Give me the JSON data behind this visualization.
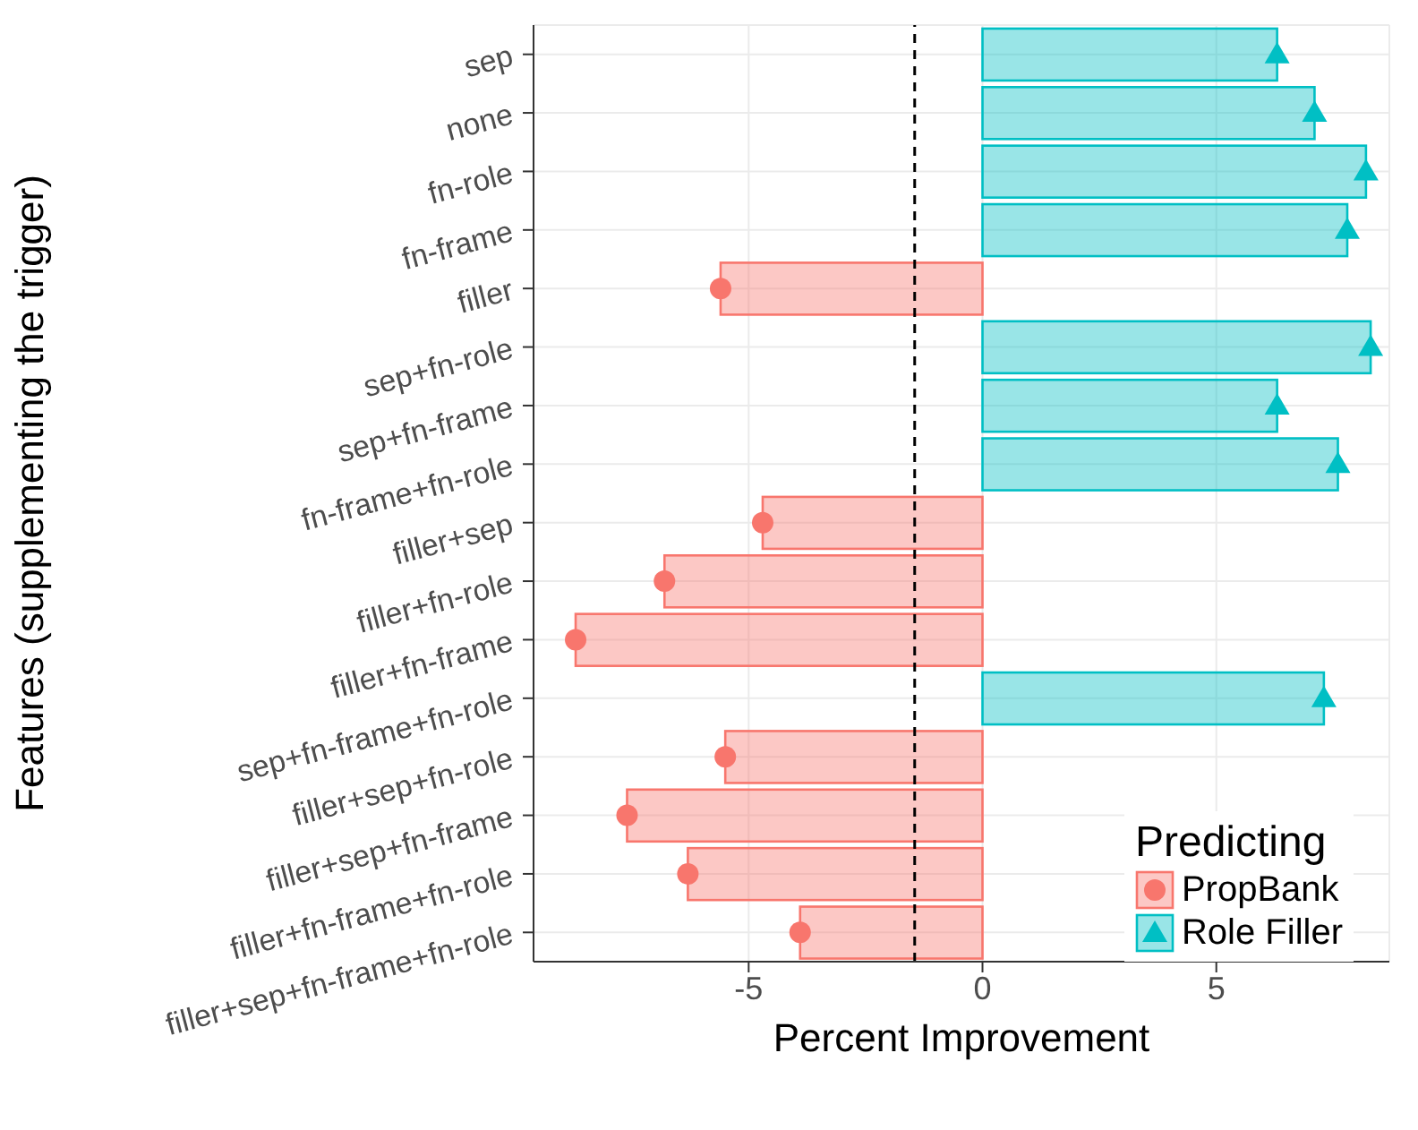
{
  "chart_data": {
    "type": "bar",
    "orientation": "horizontal",
    "stacked": true,
    "xlabel": "Percent Improvement",
    "ylabel": "Features (supplementing the trigger)",
    "legend_title": "Predicting",
    "legend": "bottom right",
    "grid": true,
    "categories": [
      "sep",
      "none",
      "fn-role",
      "fn-frame",
      "filler",
      "sep+fn-role",
      "sep+fn-frame",
      "fn-frame+fn-role",
      "filler+sep",
      "filler+fn-role",
      "filler+fn-frame",
      "sep+fn-frame+fn-role",
      "filler+sep+fn-role",
      "filler+sep+fn-frame",
      "filler+fn-frame+fn-role",
      "filler+sep+fn-frame+fn-role"
    ],
    "series": [
      {
        "name": "PropBank",
        "color": "#f8766d",
        "values": [
          null,
          null,
          null,
          null,
          -5.6,
          null,
          null,
          null,
          -4.7,
          -6.8,
          -8.7,
          null,
          -5.5,
          -7.6,
          -6.3,
          -3.9
        ]
      },
      {
        "name": "Role Filler",
        "color": "#00bfc4",
        "values": [
          6.3,
          7.1,
          8.2,
          7.8,
          null,
          8.3,
          6.3,
          7.6,
          null,
          null,
          null,
          7.3,
          null,
          null,
          null,
          null
        ]
      },
      {
        "type": "scatter",
        "color": "#f8766d",
        "marker": "circle",
        "values": [
          null,
          null,
          null,
          null,
          -5.6,
          null,
          null,
          null,
          -4.7,
          -6.8,
          -8.7,
          null,
          -5.5,
          -7.6,
          -6.3,
          -3.9
        ]
      },
      {
        "type": "scatter",
        "color": "#00bfc4",
        "marker": "triangle",
        "values": [
          6.3,
          7.1,
          8.2,
          7.8,
          null,
          8.3,
          6.3,
          7.6,
          null,
          null,
          null,
          7.3,
          null,
          null,
          null,
          null
        ]
      }
    ],
    "xlim": [
      -9.6,
      8.7
    ],
    "xticks": [
      -5,
      0,
      5
    ],
    "ref_lines": [
      {
        "axis": "x",
        "value": -1.45,
        "color": "#000000",
        "line_style": "dashed"
      }
    ]
  }
}
